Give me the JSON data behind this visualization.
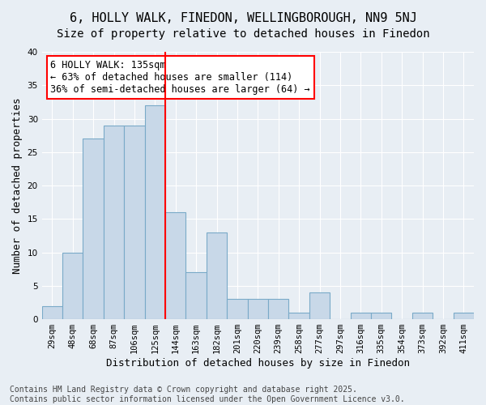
{
  "title": "6, HOLLY WALK, FINEDON, WELLINGBOROUGH, NN9 5NJ",
  "subtitle": "Size of property relative to detached houses in Finedon",
  "xlabel": "Distribution of detached houses by size in Finedon",
  "ylabel": "Number of detached properties",
  "bar_values": [
    2,
    10,
    27,
    29,
    29,
    32,
    16,
    7,
    13,
    3,
    3,
    3,
    1,
    4,
    0,
    1,
    1,
    0,
    1,
    0,
    1
  ],
  "bin_labels": [
    "29sqm",
    "48sqm",
    "68sqm",
    "87sqm",
    "106sqm",
    "125sqm",
    "144sqm",
    "163sqm",
    "182sqm",
    "201sqm",
    "220sqm",
    "239sqm",
    "258sqm",
    "277sqm",
    "297sqm",
    "316sqm",
    "335sqm",
    "354sqm",
    "373sqm",
    "392sqm",
    "411sqm"
  ],
  "bar_color": "#c8d8e8",
  "bar_edge_color": "#7aaac8",
  "vline_x": 5.5,
  "vline_color": "red",
  "annotation_text": "6 HOLLY WALK: 135sqm\n← 63% of detached houses are smaller (114)\n36% of semi-detached houses are larger (64) →",
  "annotation_box_color": "white",
  "annotation_box_edge": "red",
  "ylim": [
    0,
    40
  ],
  "yticks": [
    0,
    5,
    10,
    15,
    20,
    25,
    30,
    35,
    40
  ],
  "background_color": "#e8eef4",
  "plot_background": "#e8eef4",
  "footer": "Contains HM Land Registry data © Crown copyright and database right 2025.\nContains public sector information licensed under the Open Government Licence v3.0.",
  "title_fontsize": 11,
  "subtitle_fontsize": 10,
  "xlabel_fontsize": 9,
  "ylabel_fontsize": 9,
  "tick_fontsize": 7.5,
  "annotation_fontsize": 8.5,
  "footer_fontsize": 7
}
